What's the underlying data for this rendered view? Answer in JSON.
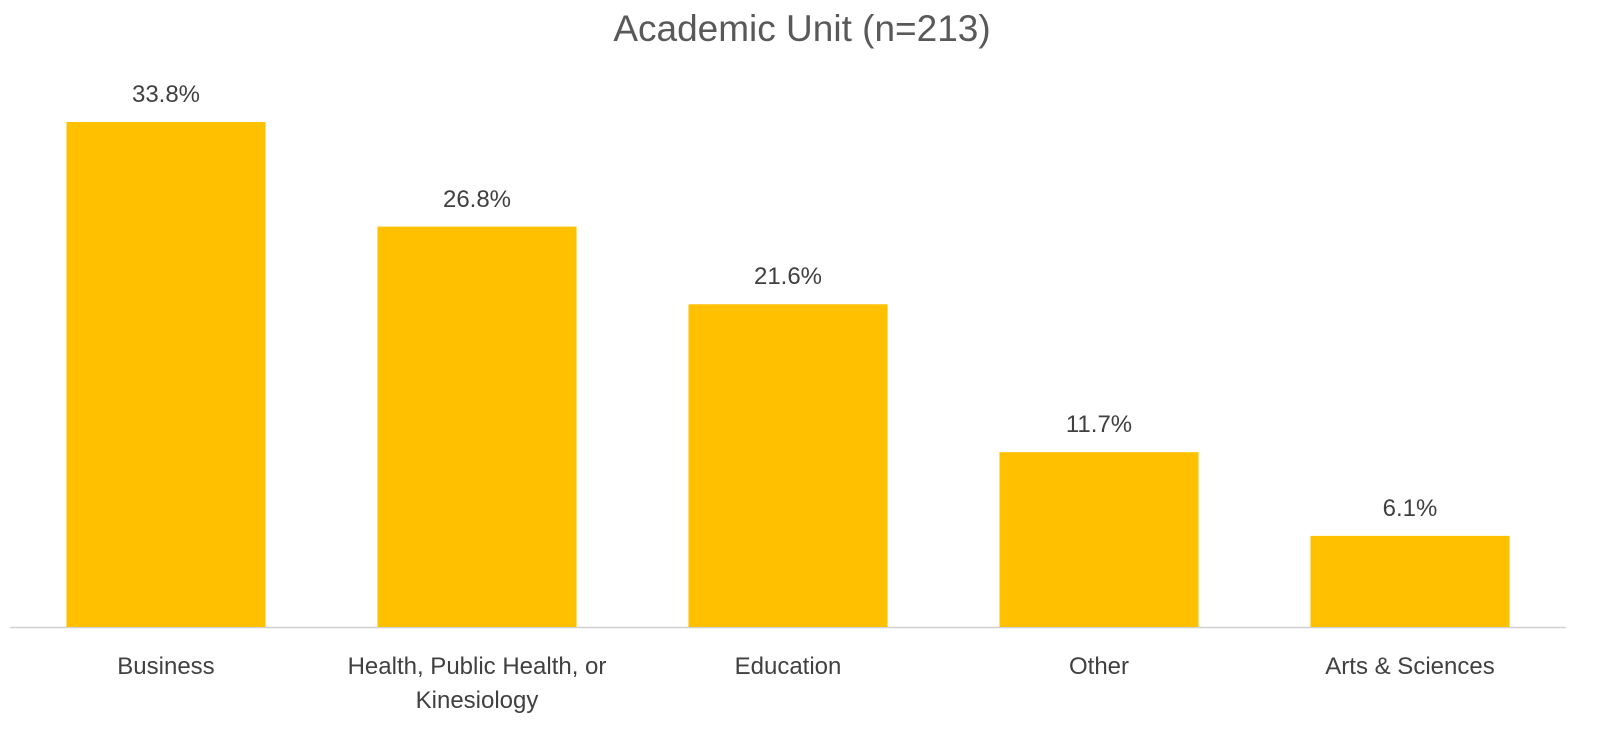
{
  "chart_data": {
    "type": "bar",
    "title": "Academic Unit (n=213)",
    "categories": [
      "Business",
      "Health, Public Health, or Kinesiology",
      "Education",
      "Other",
      "Arts & Sciences"
    ],
    "values": [
      33.8,
      26.8,
      21.6,
      11.7,
      6.1
    ],
    "value_labels": [
      "33.8%",
      "26.8%",
      "21.6%",
      "11.7%",
      "6.1%"
    ],
    "color": "#FFC000"
  }
}
